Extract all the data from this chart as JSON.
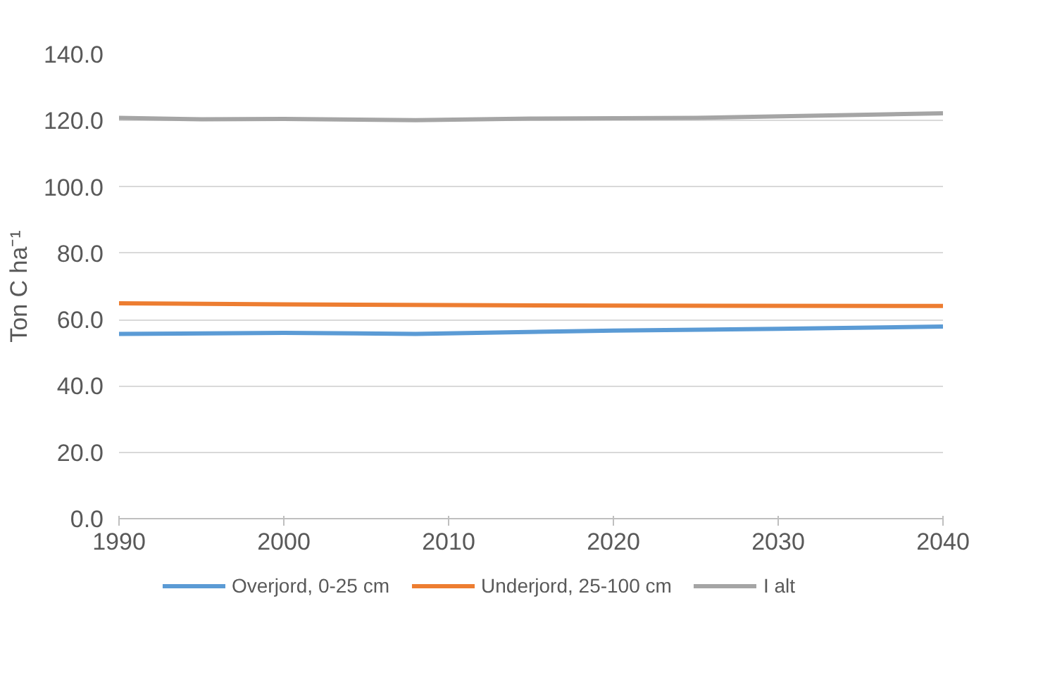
{
  "chart_data": {
    "type": "line",
    "ylabel": "Ton C ha⁻¹",
    "xlim": [
      1990,
      2040
    ],
    "xticks": [
      1990,
      2000,
      2010,
      2020,
      2030,
      2040
    ],
    "ylim": [
      0,
      140
    ],
    "yticks": [
      {
        "value": 0,
        "label": "0.0"
      },
      {
        "value": 20,
        "label": "20.0"
      },
      {
        "value": 40,
        "label": "40.0"
      },
      {
        "value": 60,
        "label": "60.0"
      },
      {
        "value": 80,
        "label": "80.0"
      },
      {
        "value": 100,
        "label": "100.0"
      },
      {
        "value": 120,
        "label": "120.0"
      },
      {
        "value": 140,
        "label": "140.0"
      }
    ],
    "grid": "y",
    "legend": "bottom",
    "line_style": "solid",
    "series": [
      {
        "name": "Overjord, 0-25 cm",
        "color": "#5b9bd5",
        "x": [
          1990,
          2000,
          2008,
          2020,
          2030,
          2040
        ],
        "values": [
          55.7,
          56.0,
          55.7,
          56.7,
          57.2,
          57.9
        ]
      },
      {
        "name": "Underjord, 25-100 cm",
        "color": "#ed7d31",
        "x": [
          1990,
          2000,
          2020,
          2040
        ],
        "values": [
          64.9,
          64.6,
          64.2,
          64.1
        ]
      },
      {
        "name": "I alt",
        "color": "#a5a5a5",
        "x": [
          1990,
          1995,
          2000,
          2008,
          2015,
          2025,
          2040
        ],
        "values": [
          120.8,
          120.4,
          120.5,
          120.1,
          120.6,
          120.8,
          122.2
        ]
      }
    ]
  }
}
